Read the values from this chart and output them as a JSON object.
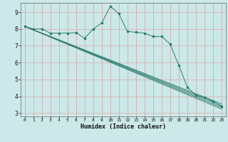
{
  "background_color": "#cce8e8",
  "grid_major_color": "#ddaaaa",
  "grid_minor_color": "#cce8e8",
  "line_color": "#2e7d6e",
  "xlabel": "Humidex (Indice chaleur)",
  "xlim": [
    -0.5,
    23.5
  ],
  "ylim": [
    2.8,
    9.55
  ],
  "xticks": [
    0,
    1,
    2,
    3,
    4,
    5,
    6,
    7,
    8,
    9,
    10,
    11,
    12,
    13,
    14,
    15,
    16,
    17,
    18,
    19,
    20,
    21,
    22,
    23
  ],
  "yticks": [
    3,
    4,
    5,
    6,
    7,
    8,
    9
  ],
  "line1_x": [
    0,
    1,
    2,
    3,
    4,
    5,
    6,
    7,
    8,
    9,
    10,
    11,
    12,
    13,
    14,
    15,
    16,
    17,
    18,
    19,
    20,
    21,
    22,
    23
  ],
  "line1_y": [
    8.15,
    8.0,
    8.0,
    7.75,
    7.75,
    7.75,
    7.78,
    7.45,
    8.0,
    8.35,
    9.35,
    8.9,
    7.85,
    7.8,
    7.75,
    7.55,
    7.55,
    7.1,
    5.85,
    4.55,
    4.05,
    3.95,
    3.7,
    3.4
  ],
  "straight_lines": [
    {
      "x": [
        0,
        23
      ],
      "y": [
        8.15,
        3.55
      ]
    },
    {
      "x": [
        0,
        23
      ],
      "y": [
        8.15,
        3.45
      ]
    },
    {
      "x": [
        0,
        23
      ],
      "y": [
        8.15,
        3.35
      ]
    },
    {
      "x": [
        0,
        23
      ],
      "y": [
        8.15,
        3.25
      ]
    }
  ]
}
